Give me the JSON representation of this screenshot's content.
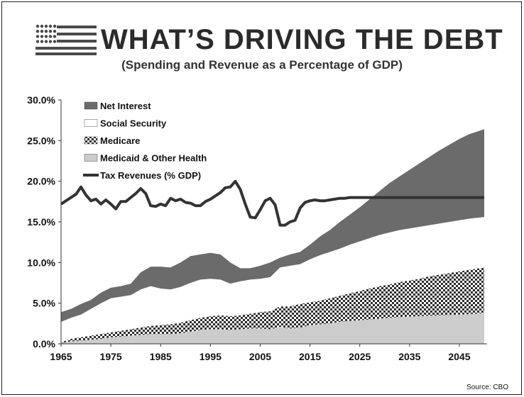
{
  "header": {
    "title": "WHAT’S DRIVING THE DEBT",
    "subtitle": "(Spending and Revenue as a Percentage of GDP)",
    "source": "Source: CBO"
  },
  "colors": {
    "net_interest": "#6b6b6b",
    "social_security": "#ffffff",
    "medicare_dark": "#2e2e2e",
    "medicare_light": "#ffffff",
    "medicaid": "#cccccc",
    "tax_line": "#333333",
    "flag": "#4a4a4a"
  },
  "chart_data": {
    "type": "area",
    "xlim": [
      1965,
      2050
    ],
    "ylim": [
      0,
      30
    ],
    "x_ticks": [
      "1965",
      "1975",
      "1985",
      "1995",
      "2005",
      "2015",
      "2025",
      "2035",
      "2045"
    ],
    "y_ticks": [
      "0.0%",
      "5.0%",
      "10.0%",
      "15.0%",
      "20.0%",
      "25.0%",
      "30.0%"
    ],
    "legend": [
      {
        "label": "Net Interest",
        "kind": "area"
      },
      {
        "label": "Social Security",
        "kind": "area"
      },
      {
        "label": "Medicare",
        "kind": "area"
      },
      {
        "label": "Medicaid & Other Health",
        "kind": "area"
      },
      {
        "label": "Tax Revenues (% GDP)",
        "kind": "line"
      }
    ],
    "x": [
      1965,
      1967,
      1969,
      1971,
      1973,
      1975,
      1977,
      1979,
      1981,
      1983,
      1985,
      1987,
      1989,
      1991,
      1993,
      1995,
      1997,
      1999,
      2001,
      2003,
      2005,
      2007,
      2009,
      2011,
      2013,
      2015,
      2017,
      2019,
      2021,
      2023,
      2025,
      2027,
      2029,
      2031,
      2033,
      2035,
      2037,
      2039,
      2041,
      2043,
      2045,
      2047,
      2050
    ],
    "series": [
      {
        "name": "Medicaid & Other Health",
        "cumulative_top": [
          0.1,
          0.3,
          0.4,
          0.5,
          0.6,
          0.8,
          0.9,
          1.0,
          1.1,
          1.2,
          1.2,
          1.2,
          1.3,
          1.5,
          1.7,
          1.8,
          1.8,
          1.7,
          1.8,
          1.9,
          1.9,
          1.8,
          2.1,
          1.9,
          2.0,
          2.3,
          2.4,
          2.5,
          2.7,
          2.8,
          2.9,
          3.0,
          3.1,
          3.2,
          3.3,
          3.35,
          3.4,
          3.45,
          3.5,
          3.55,
          3.6,
          3.65,
          3.8
        ]
      },
      {
        "name": "Medicare",
        "cumulative_top": [
          0.2,
          0.6,
          0.8,
          1.0,
          1.2,
          1.4,
          1.6,
          1.8,
          2.0,
          2.2,
          2.3,
          2.4,
          2.6,
          2.9,
          3.2,
          3.4,
          3.5,
          3.4,
          3.5,
          3.7,
          3.9,
          4.0,
          4.6,
          4.6,
          4.9,
          5.1,
          5.3,
          5.6,
          5.9,
          6.2,
          6.5,
          6.8,
          7.1,
          7.3,
          7.6,
          7.8,
          8.0,
          8.3,
          8.5,
          8.7,
          8.9,
          9.1,
          9.4
        ]
      },
      {
        "name": "Social Security",
        "cumulative_top": [
          2.7,
          3.2,
          3.6,
          4.3,
          5.0,
          5.6,
          5.8,
          6.0,
          6.7,
          7.1,
          6.8,
          6.7,
          7.0,
          7.5,
          7.9,
          8.0,
          7.9,
          7.4,
          7.7,
          7.9,
          8.0,
          8.2,
          9.4,
          9.6,
          9.8,
          10.4,
          10.9,
          11.3,
          11.7,
          12.2,
          12.6,
          13.0,
          13.4,
          13.7,
          14.0,
          14.2,
          14.4,
          14.6,
          14.8,
          15.0,
          15.2,
          15.4,
          15.6
        ]
      },
      {
        "name": "Net Interest",
        "cumulative_top": [
          3.9,
          4.3,
          4.9,
          5.4,
          6.3,
          6.9,
          7.1,
          7.4,
          8.8,
          9.5,
          9.5,
          9.4,
          10.0,
          10.8,
          11.0,
          11.2,
          11.0,
          10.0,
          9.3,
          9.3,
          9.6,
          10.0,
          10.6,
          11.0,
          11.3,
          12.2,
          13.2,
          14.0,
          15.0,
          15.9,
          16.8,
          17.8,
          18.8,
          19.8,
          20.6,
          21.4,
          22.2,
          23.0,
          23.8,
          24.5,
          25.2,
          25.8,
          26.4
        ]
      }
    ],
    "tax_revenues": {
      "name": "Tax Revenues (% GDP)",
      "x": [
        1965,
        1966,
        1967,
        1968,
        1969,
        1970,
        1971,
        1972,
        1973,
        1974,
        1975,
        1976,
        1977,
        1978,
        1979,
        1980,
        1981,
        1982,
        1983,
        1984,
        1985,
        1986,
        1987,
        1988,
        1989,
        1990,
        1991,
        1992,
        1993,
        1994,
        1995,
        1996,
        1997,
        1998,
        1999,
        2000,
        2001,
        2002,
        2003,
        2004,
        2005,
        2006,
        2007,
        2008,
        2009,
        2010,
        2011,
        2012,
        2013,
        2014,
        2015,
        2016,
        2017,
        2018,
        2019,
        2020,
        2021,
        2022,
        2023,
        2024,
        2025,
        2030,
        2035,
        2040,
        2045,
        2050
      ],
      "y": [
        17.2,
        17.6,
        18.0,
        18.4,
        19.3,
        18.3,
        17.6,
        17.8,
        17.2,
        17.7,
        17.2,
        16.6,
        17.5,
        17.5,
        18.0,
        18.5,
        19.1,
        18.5,
        17.0,
        16.9,
        17.2,
        17.0,
        17.9,
        17.6,
        17.8,
        17.4,
        17.3,
        17.0,
        17.0,
        17.5,
        17.8,
        18.2,
        18.6,
        19.2,
        19.3,
        20.0,
        19.0,
        17.2,
        15.6,
        15.5,
        16.5,
        17.6,
        17.9,
        17.1,
        14.6,
        14.6,
        15.0,
        15.2,
        16.7,
        17.4,
        17.6,
        17.7,
        17.6,
        17.6,
        17.7,
        17.8,
        17.9,
        17.9,
        18.0,
        18.0,
        18.0,
        18.0,
        18.0,
        18.0,
        18.0,
        18.0
      ]
    }
  }
}
